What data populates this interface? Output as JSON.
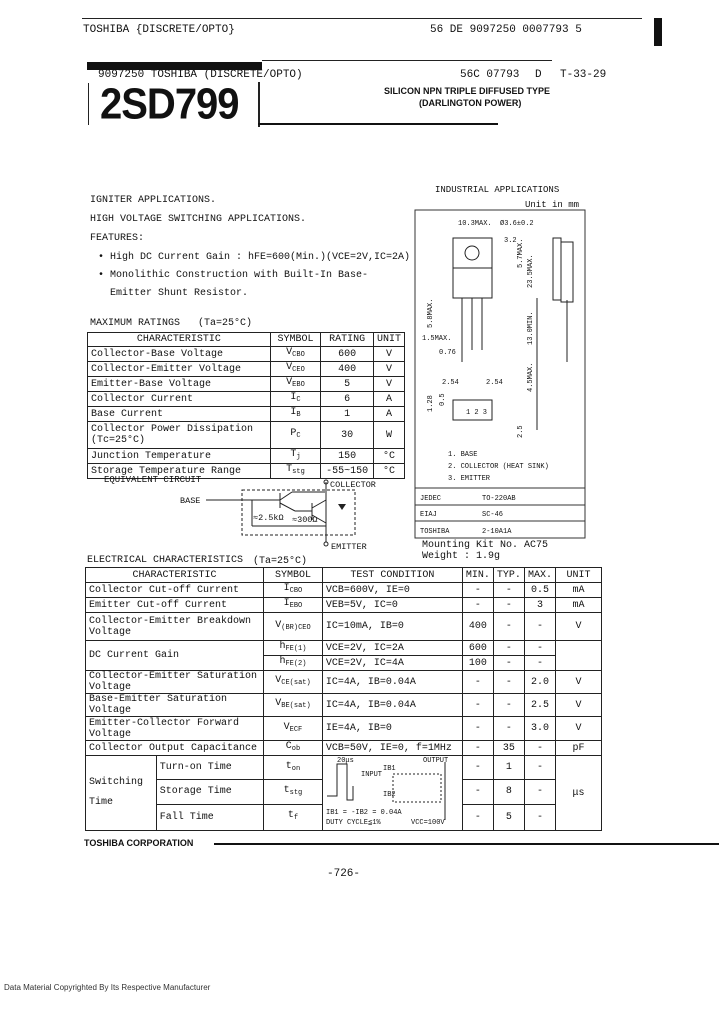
{
  "header": {
    "line1_left": "TOSHIBA {DISCRETE/OPTO}",
    "line1_right": "56  DE  9097250 0007793 5",
    "line2_left": "9097250 TOSHIBA (DISCRETE/OPTO)",
    "line2_code": "56C 07793",
    "line2_d": "D",
    "line2_t": "T-33-29"
  },
  "part_number": "2SD799",
  "subtitle": [
    "SILICON NPN TRIPLE DIFFUSED TYPE",
    "(DARLINGTON POWER)"
  ],
  "applications": [
    "IGNITER APPLICATIONS.",
    "HIGH VOLTAGE SWITCHING APPLICATIONS."
  ],
  "features": {
    "title": "FEATURES:",
    "items": [
      "• High DC Current Gain : hFE=600(Min.)(VCE=2V,IC=2A)",
      "• Monolithic Construction with Built-In Base-",
      "  Emitter Shunt Resistor."
    ]
  },
  "max_ratings": {
    "title": "MAXIMUM RATINGS",
    "condition": "(Ta=25°C)",
    "headers": [
      "CHARACTERISTIC",
      "SYMBOL",
      "RATING",
      "UNIT"
    ],
    "rows": [
      {
        "characteristic": "Collector-Base Voltage",
        "symbol": "V",
        "sub": "CBO",
        "rating": "600",
        "unit": "V"
      },
      {
        "characteristic": "Collector-Emitter Voltage",
        "symbol": "V",
        "sub": "CEO",
        "rating": "400",
        "unit": "V"
      },
      {
        "characteristic": "Emitter-Base Voltage",
        "symbol": "V",
        "sub": "EBO",
        "rating": "5",
        "unit": "V"
      },
      {
        "characteristic": "Collector Current",
        "symbol": "I",
        "sub": "C",
        "rating": "6",
        "unit": "A"
      },
      {
        "characteristic": "Base Current",
        "symbol": "I",
        "sub": "B",
        "rating": "1",
        "unit": "A"
      },
      {
        "characteristic": "Collector Power Dissipation (Tc=25°C)",
        "symbol": "P",
        "sub": "C",
        "rating": "30",
        "unit": "W"
      },
      {
        "characteristic": "Junction Temperature",
        "symbol": "T",
        "sub": "j",
        "rating": "150",
        "unit": "°C"
      },
      {
        "characteristic": "Storage Temperature Range",
        "symbol": "T",
        "sub": "stg",
        "rating": "-55~150",
        "unit": "°C"
      }
    ]
  },
  "equivalent_circuit": {
    "title": "EQUIVALENT CIRCUIT",
    "base": "BASE",
    "collector": "COLLECTOR",
    "emitter": "EMITTER",
    "r1": "≈2.5kΩ",
    "r2": "≈300Ω"
  },
  "package": {
    "title": "INDUSTRIAL APPLICATIONS",
    "unit": "Unit in mm",
    "dims": [
      "10.3MAX.",
      "Ø3.6±0.2",
      "3.2",
      "5.7MAX.",
      "23.5MAX.",
      "5.8MAX.",
      "1.5MAX.",
      "0.76",
      "13.0MIN.",
      "4.5MAX.",
      "2.54",
      "2.54",
      "1.28",
      "0.5",
      "2.5"
    ],
    "pins": [
      "1. BASE",
      "2. COLLECTOR (HEAT SINK)",
      "3. EMITTER"
    ],
    "standards": [
      {
        "name": "JEDEC",
        "value": "TO-220AB"
      },
      {
        "name": "EIAJ",
        "value": "SC-46"
      },
      {
        "name": "TOSHIBA",
        "value": "2-10A1A"
      }
    ],
    "mounting_kit": "Mounting Kit No. AC75",
    "weight": "Weight : 1.9g"
  },
  "electrical": {
    "title": "ELECTRICAL CHARACTERISTICS",
    "condition": "(Ta=25°C)",
    "headers": [
      "CHARACTERISTIC",
      "SYMBOL",
      "TEST CONDITION",
      "MIN.",
      "TYP.",
      "MAX.",
      "UNIT"
    ],
    "rows": [
      {
        "characteristic": "Collector Cut-off Current",
        "symbol": "I",
        "sub": "CBO",
        "test": "VCB=600V, IE=0",
        "min": "-",
        "typ": "-",
        "max": "0.5",
        "unit": "mA"
      },
      {
        "characteristic": "Emitter Cut-off Current",
        "symbol": "I",
        "sub": "EBO",
        "test": "VEB=5V, IC=0",
        "min": "-",
        "typ": "-",
        "max": "3",
        "unit": "mA"
      },
      {
        "characteristic": "Collector-Emitter Breakdown Voltage",
        "symbol": "V",
        "sub": "(BR)CEO",
        "test": "IC=10mA, IB=0",
        "min": "400",
        "typ": "-",
        "max": "-",
        "unit": "V"
      },
      {
        "characteristic": "DC Current Gain",
        "symbol": "h",
        "sub": "FE(1)",
        "test": "VCE=2V, IC=2A",
        "min": "600",
        "typ": "-",
        "max": "-",
        "unit": ""
      },
      {
        "characteristic": "",
        "symbol": "h",
        "sub": "FE(2)",
        "test": "VCE=2V, IC=4A",
        "min": "100",
        "typ": "-",
        "max": "-",
        "unit": ""
      },
      {
        "characteristic": "Collector-Emitter Saturation Voltage",
        "symbol": "V",
        "sub": "CE(sat)",
        "test": "IC=4A, IB=0.04A",
        "min": "-",
        "typ": "-",
        "max": "2.0",
        "unit": "V"
      },
      {
        "characteristic": "Base-Emitter Saturation Voltage",
        "symbol": "V",
        "sub": "BE(sat)",
        "test": "IC=4A, IB=0.04A",
        "min": "-",
        "typ": "-",
        "max": "2.5",
        "unit": "V"
      },
      {
        "characteristic": "Emitter-Collector Forward Voltage",
        "symbol": "V",
        "sub": "ECF",
        "test": "IE=4A, IB=0",
        "min": "-",
        "typ": "-",
        "max": "3.0",
        "unit": "V"
      },
      {
        "characteristic": "Collector Output Capacitance",
        "symbol": "C",
        "sub": "ob",
        "test": "VCB=50V, IE=0, f=1MHz",
        "min": "-",
        "typ": "35",
        "max": "-",
        "unit": "pF"
      }
    ],
    "switching": {
      "label": "Switching Time",
      "unit": "μs",
      "rows": [
        {
          "name": "Turn-on Time",
          "symbol": "t",
          "sub": "on",
          "min": "-",
          "typ": "1",
          "max": "-"
        },
        {
          "name": "Storage Time",
          "symbol": "t",
          "sub": "stg",
          "min": "-",
          "typ": "8",
          "max": "-"
        },
        {
          "name": "Fall Time",
          "symbol": "t",
          "sub": "f",
          "min": "-",
          "typ": "5",
          "max": "-"
        }
      ],
      "circuit": {
        "pulse": "20μs",
        "input": "INPUT",
        "output": "OUTPUT",
        "ib1": "IB1",
        "ib2": "IB2",
        "cond1": "IB1 = -IB2 = 0.04A",
        "cond2": "DUTY CYCLE≦1%",
        "vcc": "VCC=100V"
      }
    }
  },
  "footer": {
    "company": "TOSHIBA CORPORATION",
    "page": "-726-",
    "copyright": "Data Material Copyrighted By Its Respective Manufacturer"
  }
}
